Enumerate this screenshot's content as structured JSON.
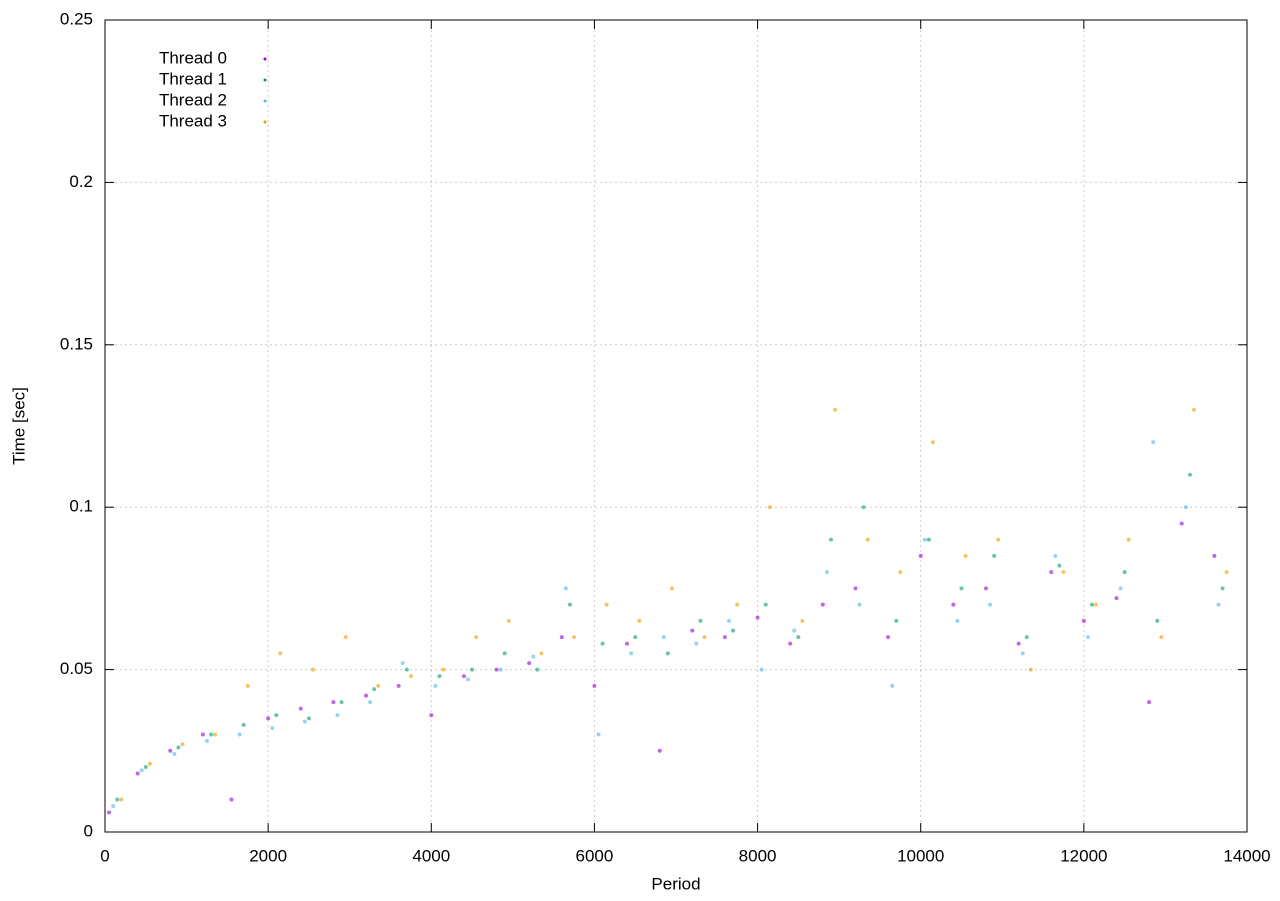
{
  "chart_data": {
    "type": "scatter",
    "xlabel": "Period",
    "ylabel": "Time [sec]",
    "xlim": [
      0,
      14000
    ],
    "xticks": [
      0,
      2000,
      4000,
      6000,
      8000,
      10000,
      12000,
      14000
    ],
    "ylim": [
      0,
      0.25
    ],
    "yticks": [
      0,
      0.05,
      0.1,
      0.15,
      0.2,
      0.25
    ],
    "grid": true,
    "legend": "upper left",
    "series": [
      {
        "name": "Thread 0",
        "color": "#9400d3",
        "x": [
          50,
          400,
          800,
          1200,
          1550,
          2000,
          2400,
          2800,
          3200,
          3600,
          4000,
          4400,
          4800,
          5200,
          5600,
          6000,
          6400,
          6800,
          7200,
          7600,
          8000,
          8400,
          8800,
          9200,
          9600,
          10000,
          10400,
          10800,
          11200,
          11600,
          12000,
          12400,
          12800,
          13200,
          13600
        ],
        "values": [
          0.006,
          0.018,
          0.025,
          0.03,
          0.01,
          0.035,
          0.038,
          0.04,
          0.042,
          0.045,
          0.036,
          0.048,
          0.05,
          0.052,
          0.06,
          0.045,
          0.058,
          0.025,
          0.062,
          0.06,
          0.066,
          0.058,
          0.07,
          0.075,
          0.06,
          0.085,
          0.07,
          0.075,
          0.058,
          0.08,
          0.065,
          0.072,
          0.04,
          0.095,
          0.085
        ]
      },
      {
        "name": "Thread 1",
        "color": "#009e73",
        "x": [
          150,
          500,
          900,
          1300,
          1700,
          2100,
          2500,
          2900,
          3300,
          3700,
          4100,
          4500,
          4900,
          5300,
          5700,
          6100,
          6500,
          6900,
          7300,
          7700,
          8100,
          8500,
          8900,
          9300,
          9700,
          10100,
          10500,
          10900,
          11300,
          11700,
          12100,
          12500,
          12900,
          13300,
          13700
        ],
        "values": [
          0.01,
          0.02,
          0.026,
          0.03,
          0.033,
          0.036,
          0.035,
          0.04,
          0.044,
          0.05,
          0.048,
          0.05,
          0.055,
          0.05,
          0.07,
          0.058,
          0.06,
          0.055,
          0.065,
          0.062,
          0.07,
          0.06,
          0.09,
          0.1,
          0.065,
          0.09,
          0.075,
          0.085,
          0.06,
          0.082,
          0.07,
          0.08,
          0.065,
          0.11,
          0.075
        ]
      },
      {
        "name": "Thread 2",
        "color": "#56b4e9",
        "x": [
          100,
          450,
          850,
          1250,
          1650,
          2050,
          2450,
          2850,
          3250,
          3650,
          4050,
          4450,
          4850,
          5250,
          5650,
          6050,
          6450,
          6850,
          7250,
          7650,
          8050,
          8450,
          8850,
          9250,
          9650,
          10050,
          10450,
          10850,
          11250,
          11650,
          12050,
          12450,
          12850,
          13250,
          13650
        ],
        "values": [
          0.008,
          0.019,
          0.024,
          0.028,
          0.03,
          0.032,
          0.034,
          0.036,
          0.04,
          0.052,
          0.045,
          0.047,
          0.05,
          0.054,
          0.075,
          0.03,
          0.055,
          0.06,
          0.058,
          0.065,
          0.05,
          0.062,
          0.08,
          0.07,
          0.045,
          0.09,
          0.065,
          0.07,
          0.055,
          0.085,
          0.06,
          0.075,
          0.12,
          0.1,
          0.07
        ]
      },
      {
        "name": "Thread 3",
        "color": "#e69f00",
        "x": [
          200,
          550,
          950,
          1350,
          1750,
          2150,
          2550,
          2950,
          3350,
          3750,
          4150,
          4550,
          4950,
          5350,
          5750,
          6150,
          6550,
          6950,
          7350,
          7750,
          8150,
          8550,
          8950,
          9350,
          9750,
          10150,
          10550,
          10950,
          11350,
          11750,
          12150,
          12550,
          12950,
          13350,
          13750
        ],
        "values": [
          0.01,
          0.021,
          0.027,
          0.03,
          0.045,
          0.055,
          0.05,
          0.06,
          0.045,
          0.048,
          0.05,
          0.06,
          0.065,
          0.055,
          0.06,
          0.07,
          0.065,
          0.075,
          0.06,
          0.07,
          0.1,
          0.065,
          0.13,
          0.09,
          0.08,
          0.12,
          0.085,
          0.09,
          0.05,
          0.08,
          0.07,
          0.09,
          0.06,
          0.13,
          0.08
        ]
      }
    ]
  }
}
